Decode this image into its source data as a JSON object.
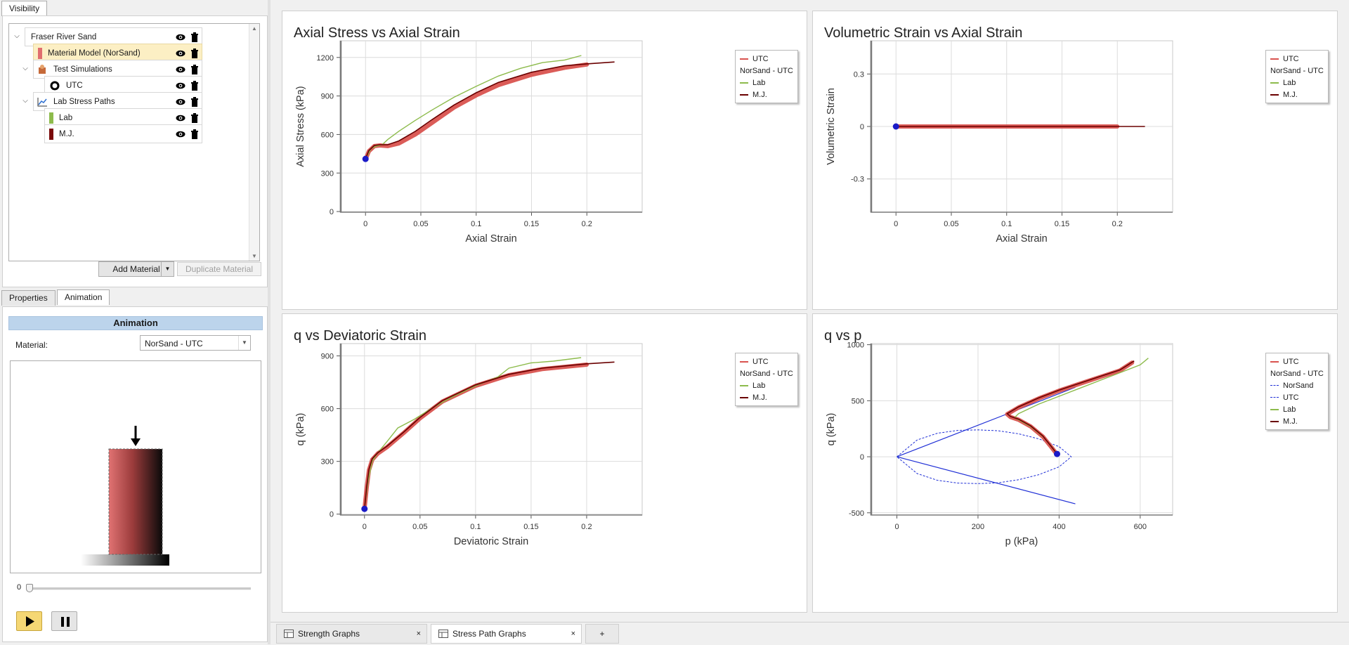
{
  "visibility": {
    "tab": "Visibility",
    "tree": [
      {
        "label": "Fraser River Sand",
        "expander": "collapse",
        "level": 0
      },
      {
        "label": "Material Model (NorSand)",
        "level": 1,
        "selected": true,
        "swatch": "#e06e6e"
      },
      {
        "label": "Test Simulations",
        "level": 1,
        "expander": "collapse",
        "icon": "test-simulations-icon"
      },
      {
        "label": "UTC",
        "level": 2,
        "icon": "ring-icon"
      },
      {
        "label": "Lab Stress Paths",
        "level": 1,
        "expander": "collapse",
        "icon": "chart-icon"
      },
      {
        "label": "Lab",
        "level": 2,
        "swatch": "#8dbb4c"
      },
      {
        "label": "M.J.",
        "level": 2,
        "swatch": "#7a0a0a"
      }
    ],
    "add_material": "Add Material",
    "duplicate_material": "Duplicate Material"
  },
  "props_tabs": {
    "properties": "Properties",
    "animation": "Animation"
  },
  "animation": {
    "header": "Animation",
    "material_label": "Material:",
    "material_value": "NorSand - UTC",
    "slider_value": "0",
    "slider_fraction": 0
  },
  "bottom_tabs": [
    {
      "label": "Strength Graphs",
      "active": false
    },
    {
      "label": "Stress Path Graphs",
      "active": true
    },
    {
      "label": "+",
      "active": false
    }
  ],
  "colors": {
    "utc": "#d9534f",
    "lab": "#8dbb4c",
    "mj": "#6a0000",
    "norsand": "#1f2fd6",
    "marker": "#1a1ac7"
  },
  "chart_data": [
    {
      "id": "g1",
      "type": "line",
      "title": "Axial Stress vs Axial Strain",
      "xlabel": "Axial Strain",
      "ylabel": "Axial Stress (kPa)",
      "xlim": [
        -0.023,
        0.25
      ],
      "ylim": [
        -5,
        1330
      ],
      "xticks": [
        0,
        0.05,
        0.1,
        0.15,
        0.2
      ],
      "xticklabels": [
        "0",
        "0.05",
        "0.1",
        "0.15",
        "0.2"
      ],
      "yticks": [
        0,
        300,
        600,
        900,
        1200
      ],
      "yticklabels": [
        "0",
        "300",
        "600",
        "900",
        "1200"
      ],
      "legend": [
        "UTC",
        "NorSand - UTC",
        "Lab",
        "M.J."
      ],
      "series": [
        {
          "name": "UTC",
          "style": "thick",
          "x": [
            0,
            0.003,
            0.008,
            0.013,
            0.02,
            0.03,
            0.045,
            0.06,
            0.08,
            0.1,
            0.12,
            0.15,
            0.18,
            0.2
          ],
          "y": [
            405,
            470,
            510,
            515,
            510,
            530,
            600,
            690,
            810,
            905,
            985,
            1065,
            1120,
            1145
          ]
        },
        {
          "name": "Lab",
          "style": "thin",
          "x": [
            0,
            0.005,
            0.01,
            0.015,
            0.02,
            0.03,
            0.045,
            0.06,
            0.08,
            0.1,
            0.12,
            0.14,
            0.16,
            0.18,
            0.195
          ],
          "y": [
            410,
            490,
            510,
            520,
            560,
            625,
            710,
            790,
            890,
            975,
            1055,
            1115,
            1160,
            1180,
            1215
          ]
        },
        {
          "name": "M.J.",
          "style": "thin",
          "x": [
            0,
            0.003,
            0.008,
            0.013,
            0.02,
            0.03,
            0.045,
            0.06,
            0.08,
            0.1,
            0.12,
            0.15,
            0.18,
            0.2,
            0.225
          ],
          "y": [
            410,
            475,
            515,
            520,
            520,
            550,
            625,
            715,
            830,
            925,
            1005,
            1085,
            1135,
            1150,
            1165
          ]
        }
      ],
      "markers": [
        {
          "x": 0,
          "y": 410
        }
      ]
    },
    {
      "id": "g2",
      "type": "line",
      "title": "Volumetric Strain vs Axial Strain",
      "xlabel": "Axial Strain",
      "ylabel": "Volumetric Strain",
      "xlim": [
        -0.023,
        0.25
      ],
      "ylim": [
        -0.49,
        0.49
      ],
      "xticks": [
        0,
        0.05,
        0.1,
        0.15,
        0.2
      ],
      "xticklabels": [
        "0",
        "0.05",
        "0.1",
        "0.15",
        "0.2"
      ],
      "yticks": [
        -0.3,
        0,
        0.3
      ],
      "yticklabels": [
        "-0.3",
        "0",
        "0.3"
      ],
      "legend": [
        "UTC",
        "NorSand - UTC",
        "Lab",
        "M.J."
      ],
      "series": [
        {
          "name": "UTC",
          "style": "thick",
          "x": [
            0,
            0.2
          ],
          "y": [
            0,
            0
          ]
        },
        {
          "name": "M.J.",
          "style": "thin",
          "x": [
            0,
            0.225
          ],
          "y": [
            0,
            0
          ]
        }
      ],
      "markers": [
        {
          "x": 0,
          "y": 0
        }
      ]
    },
    {
      "id": "g3",
      "type": "line",
      "title": "q vs Deviatoric Strain",
      "xlabel": "Deviatoric Strain",
      "ylabel": "q (kPa)",
      "xlim": [
        -0.022,
        0.25
      ],
      "ylim": [
        -5,
        970
      ],
      "xticks": [
        0,
        0.05,
        0.1,
        0.15,
        0.2
      ],
      "xticklabels": [
        "0",
        "0.05",
        "0.1",
        "0.15",
        "0.2"
      ],
      "yticks": [
        0,
        300,
        600,
        900
      ],
      "yticklabels": [
        "0",
        "300",
        "600",
        "900"
      ],
      "legend": [
        "UTC",
        "NorSand - UTC",
        "Lab",
        "M.J."
      ],
      "series": [
        {
          "name": "UTC",
          "style": "thick",
          "x": [
            0,
            0.002,
            0.004,
            0.007,
            0.012,
            0.02,
            0.035,
            0.05,
            0.07,
            0.1,
            0.13,
            0.16,
            0.2
          ],
          "y": [
            30,
            150,
            250,
            310,
            345,
            380,
            460,
            545,
            640,
            730,
            790,
            825,
            850
          ]
        },
        {
          "name": "Lab",
          "style": "thin",
          "x": [
            0,
            0.003,
            0.007,
            0.012,
            0.02,
            0.03,
            0.045,
            0.06,
            0.08,
            0.1,
            0.12,
            0.13,
            0.15,
            0.17,
            0.195
          ],
          "y": [
            30,
            180,
            300,
            350,
            410,
            490,
            540,
            600,
            670,
            730,
            780,
            830,
            860,
            870,
            890
          ]
        },
        {
          "name": "M.J.",
          "style": "thin",
          "x": [
            0,
            0.002,
            0.004,
            0.007,
            0.012,
            0.02,
            0.035,
            0.05,
            0.07,
            0.1,
            0.13,
            0.16,
            0.2,
            0.225
          ],
          "y": [
            30,
            155,
            255,
            315,
            350,
            385,
            465,
            550,
            645,
            735,
            795,
            830,
            855,
            865
          ]
        }
      ],
      "markers": [
        {
          "x": 0,
          "y": 30
        }
      ]
    },
    {
      "id": "g4",
      "type": "line",
      "title": "q vs p",
      "xlabel": "p (kPa)",
      "ylabel": "q (kPa)",
      "xlim": [
        -65,
        680
      ],
      "ylim": [
        -520,
        1010
      ],
      "xticks": [
        0,
        200,
        400,
        600
      ],
      "xticklabels": [
        "0",
        "200",
        "400",
        "600"
      ],
      "yticks": [
        -500,
        0,
        500,
        1000
      ],
      "yticklabels": [
        "-500",
        "0",
        "500",
        "1000"
      ],
      "legend": [
        "UTC",
        "NorSand - UTC",
        "NorSand",
        "UTC",
        "Lab",
        "M.J."
      ],
      "series": [
        {
          "name": "NorSand",
          "style": "dashed",
          "x": [
            0,
            50,
            100,
            150,
            200,
            250,
            300,
            350,
            400,
            430,
            400,
            350,
            300,
            250,
            200,
            150,
            100,
            50,
            0
          ],
          "y": [
            0,
            150,
            210,
            235,
            240,
            232,
            205,
            160,
            90,
            0,
            -90,
            -160,
            -205,
            -232,
            -240,
            -235,
            -210,
            -150,
            0
          ]
        },
        {
          "name": "UTC-line",
          "style": "blue",
          "x": [
            0,
            270,
            440
          ],
          "y": [
            0,
            380,
            620
          ]
        },
        {
          "name": "UTC-line2",
          "style": "blue",
          "x": [
            0,
            440
          ],
          "y": [
            0,
            -420
          ]
        },
        {
          "name": "UTC",
          "style": "thick",
          "x": [
            395,
            380,
            360,
            330,
            300,
            280,
            272,
            300,
            350,
            400,
            450,
            500,
            550,
            580
          ],
          "y": [
            20,
            90,
            180,
            270,
            330,
            355,
            380,
            440,
            520,
            590,
            650,
            710,
            770,
            840
          ]
        },
        {
          "name": "Lab",
          "style": "thin",
          "x": [
            395,
            382,
            362,
            332,
            305,
            290,
            300,
            350,
            400,
            450,
            500,
            550,
            600,
            620
          ],
          "y": [
            20,
            85,
            175,
            265,
            320,
            350,
            385,
            470,
            540,
            610,
            680,
            750,
            820,
            880
          ]
        },
        {
          "name": "M.J.",
          "style": "thin",
          "x": [
            395,
            380,
            360,
            330,
            300,
            280,
            272,
            300,
            350,
            400,
            450,
            500,
            550,
            585
          ],
          "y": [
            25,
            95,
            185,
            275,
            335,
            360,
            385,
            445,
            525,
            595,
            655,
            715,
            775,
            855
          ]
        }
      ],
      "markers": [
        {
          "x": 395,
          "y": 25
        }
      ]
    }
  ]
}
